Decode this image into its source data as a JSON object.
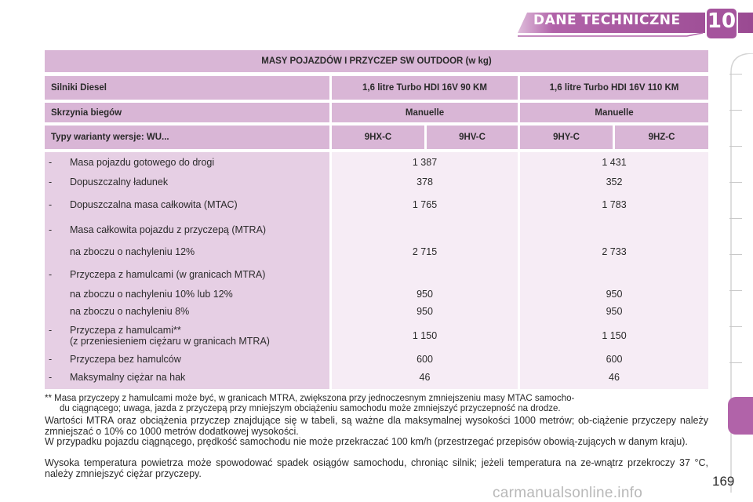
{
  "header": {
    "title": "DANE TECHNICZNE",
    "chapter": "10",
    "accent_color": "#b163a9"
  },
  "table": {
    "title": "MASY POJAZDÓW I PRZYCZEP SW OUTDOOR (w kg)",
    "engine_label": "Silniki Diesel",
    "engine_1": "1,6 litre Turbo HDI 16V 90 KM",
    "engine_2": "1,6 litre Turbo HDI 16V 110 KM",
    "gearbox_label": "Skrzynia biegów",
    "gearbox_1": "Manuelle",
    "gearbox_2": "Manuelle",
    "types_label": "Typy warianty wersje: WU...",
    "types": [
      "9HX-C",
      "9HV-C",
      "9HY-C",
      "9HZ-C"
    ],
    "rows": [
      {
        "dash": "-",
        "label": "Masa pojazdu gotowego do drogi",
        "v1": "1 387",
        "v2": "1 431"
      },
      {
        "dash": "-",
        "label": "Dopuszczalny ładunek",
        "v1": "378",
        "v2": "352"
      },
      {
        "dash": "-",
        "label": "Dopuszczalna masa całkowita (MTAC)",
        "v1": "1 765",
        "v2": "1 783"
      },
      {
        "dash": "-",
        "label": "Masa całkowita pojazdu z przyczepą (MTRA)",
        "v1": "",
        "v2": ""
      },
      {
        "dash": "",
        "label": "na zboczu o nachyleniu 12%",
        "v1": "2 715",
        "v2": "2 733"
      },
      {
        "dash": "-",
        "label": "Przyczepa z hamulcami (w granicach MTRA)",
        "v1": "",
        "v2": ""
      },
      {
        "dash": "",
        "label": "na zboczu o nachyleniu 10% lub 12%",
        "v1": "950",
        "v2": "950"
      },
      {
        "dash": "",
        "label": "na zboczu o nachyleniu 8%",
        "v1": "950",
        "v2": "950"
      },
      {
        "dash": "-",
        "label": "Przyczepa z hamulcami**",
        "label2": "(z przeniesieniem ciężaru w granicach MTRA)",
        "v1": "1 150",
        "v2": "1 150"
      },
      {
        "dash": "-",
        "label": "Przyczepa bez hamulców",
        "v1": "600",
        "v2": "600"
      },
      {
        "dash": "-",
        "label": "Maksymalny ciężar na hak",
        "v1": "46",
        "v2": "46"
      }
    ]
  },
  "footnote": {
    "line1": "** Masa przyczepy z hamulcami może być, w granicach MTRA, zwiększona przy jednoczesnym zmniejszeniu masy MTAC samocho-",
    "line2": "du ciągnącego; uwaga, jazda z przyczepą przy mniejszym obciążeniu samochodu może zmniejszyć przyczepność na drodze."
  },
  "paragraphs": {
    "p1": "Wartości MTRA oraz obciążenia przyczep znajdujące się w tabeli, są ważne dla maksymalnej wysokości 1000 metrów; ob-ciążenie przyczepy należy zmniejszać o 10% co 1000 metrów dodatkowej wysokości.",
    "p2": "W przypadku pojazdu ciągnącego, prędkość samochodu nie może przekraczać 100 km/h (przestrzegać przepisów obowią-zujących w danym kraju).",
    "p3": "Wysoka temperatura powietrza może spowodować spadek osiągów samochodu, chroniąc silnik; jeżeli temperatura na ze-wnątrz przekroczy 37 °C, należy zmniejszyć ciężar przyczepy."
  },
  "page_number": "169",
  "watermark": "carmanualsonline.info"
}
